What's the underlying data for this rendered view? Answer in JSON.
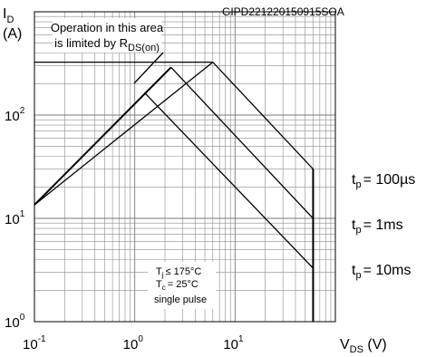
{
  "chart_data": {
    "type": "line",
    "x_scale": "log",
    "y_scale": "log",
    "xlim": [
      0.1,
      100
    ],
    "ylim": [
      1,
      1000
    ],
    "x_ticks": [
      {
        "base": "10",
        "exp": "-1"
      },
      {
        "base": "10",
        "exp": "0"
      },
      {
        "base": "10",
        "exp": "1"
      }
    ],
    "y_ticks": [
      {
        "base": "10",
        "exp": "0"
      },
      {
        "base": "10",
        "exp": "1"
      },
      {
        "base": "10",
        "exp": "2"
      }
    ],
    "ylabel": {
      "main": "I",
      "sub": "D",
      "unit": "(A)"
    },
    "xlabel": {
      "main": "V",
      "sub": "DS",
      "unit": " (V)"
    },
    "code": "GIPD221220150915SOA",
    "rds_note": {
      "line1": "Operation in this area",
      "line2": "is limited by R",
      "sub": "DS(on)"
    },
    "conditions": {
      "tj": {
        "pre": "T",
        "sub": "j",
        "post": "≤ 175°C"
      },
      "tc": {
        "pre": "T",
        "sub": "c",
        "post": "= 25°C"
      },
      "pulse": "single pulse"
    },
    "rds_limit": {
      "x": [
        0.1,
        2.3
      ],
      "y": [
        13.5,
        290
      ]
    },
    "current_limit": {
      "x": [
        0.1,
        6
      ],
      "y": [
        325,
        325
      ]
    },
    "series": [
      {
        "pre": "t",
        "sub": "p",
        "post": "= 100µs",
        "x": [
          0.1,
          6,
          60,
          60
        ],
        "y": [
          13.5,
          325,
          30,
          1
        ]
      },
      {
        "pre": "t",
        "sub": "p",
        "post": "= 1ms",
        "x": [
          2.3,
          60,
          60
        ],
        "y": [
          290,
          10,
          1
        ]
      },
      {
        "pre": "t",
        "sub": "p",
        "post": "= 10ms",
        "x": [
          1.25,
          60,
          60
        ],
        "y": [
          165,
          3.3,
          1
        ]
      }
    ],
    "grid": true,
    "colors": {
      "line": "#000000",
      "grid": "#8c8c8c",
      "background": "#ffffff"
    }
  }
}
